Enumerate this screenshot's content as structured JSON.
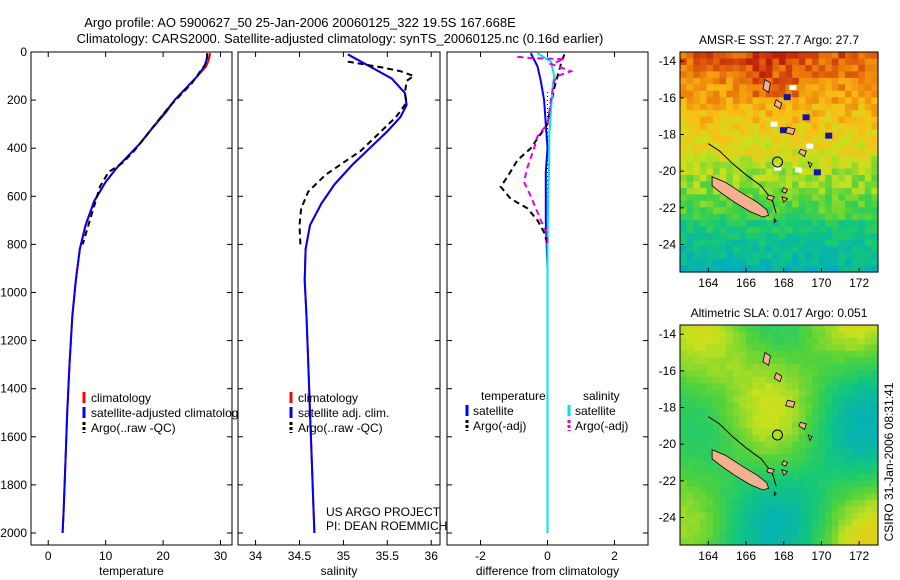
{
  "header": {
    "title_line1": "Argo profile: AO 5900627_50 25-Jan-2006 20060125_322 19.5S 167.668E",
    "title_line2": "Climatology: CARS2000. Satellite-adjusted climatology: synTS_20060125.nc (0.16d earlier)"
  },
  "side_label": "CSIRO 31-Jan-2006 08:31:41",
  "credit": {
    "line1": "US ARGO PROJECT",
    "line2": "PI: DEAN ROEMMICH"
  },
  "colors": {
    "climatology": "#ff0000",
    "satellite": "#0000ff",
    "argo": "#000000",
    "sal_satellite": "#00e5e5",
    "sal_argo": "#e600e6"
  },
  "chart_data": [
    {
      "type": "line",
      "id": "temperature-profile",
      "xlabel": "temperature",
      "xlim": [
        -3,
        32
      ],
      "xticks": [
        "0",
        "10",
        "20",
        "30"
      ],
      "ylim": [
        2050,
        0
      ],
      "yticks": [
        "0",
        "200",
        "400",
        "600",
        "800",
        "1000",
        "1200",
        "1400",
        "1600",
        "1800",
        "2000"
      ],
      "y_reversed": true,
      "legend": [
        {
          "label": "climatology",
          "color": "#ff0000",
          "style": "solid"
        },
        {
          "label": "satellite-adjusted climatology",
          "color": "#0000ff",
          "style": "solid"
        },
        {
          "label": "Argo(..raw -QC)",
          "color": "#000000",
          "style": "dashed"
        }
      ],
      "series": [
        {
          "name": "climatology",
          "color": "#ff0000",
          "style": "solid",
          "points": [
            [
              28.2,
              5
            ],
            [
              28,
              30
            ],
            [
              27.5,
              60
            ],
            [
              26,
              100
            ],
            [
              24,
              150
            ],
            [
              22,
              200
            ],
            [
              20,
              260
            ],
            [
              18,
              320
            ],
            [
              16,
              380
            ],
            [
              14,
              430
            ],
            [
              12,
              480
            ],
            [
              10,
              540
            ],
            [
              8,
              620
            ],
            [
              6.5,
              720
            ],
            [
              5.5,
              820
            ],
            [
              4.8,
              950
            ],
            [
              4.2,
              1100
            ],
            [
              3.7,
              1300
            ],
            [
              3.3,
              1500
            ],
            [
              3,
              1700
            ],
            [
              2.7,
              1900
            ],
            [
              2.5,
              2000
            ]
          ]
        },
        {
          "name": "satellite-adjusted climatology",
          "color": "#0000ff",
          "style": "solid",
          "points": [
            [
              27.7,
              5
            ],
            [
              27.6,
              30
            ],
            [
              27.2,
              60
            ],
            [
              26,
              100
            ],
            [
              24,
              150
            ],
            [
              22,
              200
            ],
            [
              20.5,
              250
            ],
            [
              18,
              320
            ],
            [
              16,
              380
            ],
            [
              14,
              430
            ],
            [
              12,
              480
            ],
            [
              10,
              540
            ],
            [
              8,
              620
            ],
            [
              6.5,
              720
            ],
            [
              5.5,
              820
            ],
            [
              4.8,
              950
            ],
            [
              4.2,
              1100
            ],
            [
              3.7,
              1300
            ],
            [
              3.3,
              1500
            ],
            [
              3,
              1700
            ],
            [
              2.7,
              1900
            ],
            [
              2.5,
              2000
            ]
          ]
        },
        {
          "name": "Argo(..raw -QC)",
          "color": "#000000",
          "style": "dashed",
          "points": [
            [
              27.7,
              5
            ],
            [
              27.7,
              40
            ],
            [
              26.5,
              80
            ],
            [
              25,
              130
            ],
            [
              23,
              180
            ],
            [
              21,
              230
            ],
            [
              19,
              290
            ],
            [
              17,
              350
            ],
            [
              15,
              410
            ],
            [
              13,
              460
            ],
            [
              10.5,
              500
            ],
            [
              9,
              560
            ],
            [
              8,
              640
            ],
            [
              7,
              720
            ],
            [
              6,
              800
            ]
          ]
        }
      ]
    },
    {
      "type": "line",
      "id": "salinity-profile",
      "xlabel": "salinity",
      "xlim": [
        33.8,
        36.1
      ],
      "xticks": [
        "34",
        "34.5",
        "35",
        "35.5",
        "36"
      ],
      "ylim": [
        2050,
        0
      ],
      "y_reversed": true,
      "legend": [
        {
          "label": "climatology",
          "color": "#ff0000",
          "style": "solid"
        },
        {
          "label": "satellite adj. clim.",
          "color": "#0000ff",
          "style": "solid"
        },
        {
          "label": "Argo(..raw -QC)",
          "color": "#000000",
          "style": "dashed"
        }
      ],
      "series": [
        {
          "name": "climatology",
          "color": "#ff0000",
          "style": "solid",
          "points": [
            [
              35.05,
              10
            ],
            [
              35.3,
              60
            ],
            [
              35.55,
              110
            ],
            [
              35.7,
              170
            ],
            [
              35.72,
              220
            ],
            [
              35.65,
              270
            ],
            [
              35.5,
              330
            ],
            [
              35.3,
              400
            ],
            [
              35.1,
              470
            ],
            [
              34.9,
              550
            ],
            [
              34.75,
              630
            ],
            [
              34.62,
              720
            ],
            [
              34.57,
              820
            ],
            [
              34.56,
              950
            ],
            [
              34.58,
              1100
            ],
            [
              34.6,
              1300
            ],
            [
              34.62,
              1500
            ],
            [
              34.64,
              1700
            ],
            [
              34.66,
              1900
            ],
            [
              34.67,
              2000
            ]
          ]
        },
        {
          "name": "satellite adj. clim.",
          "color": "#0000ff",
          "style": "solid",
          "points": [
            [
              35.05,
              10
            ],
            [
              35.3,
              60
            ],
            [
              35.55,
              110
            ],
            [
              35.7,
              170
            ],
            [
              35.72,
              220
            ],
            [
              35.65,
              270
            ],
            [
              35.5,
              330
            ],
            [
              35.3,
              400
            ],
            [
              35.1,
              470
            ],
            [
              34.9,
              550
            ],
            [
              34.75,
              630
            ],
            [
              34.62,
              720
            ],
            [
              34.57,
              820
            ],
            [
              34.56,
              950
            ],
            [
              34.58,
              1100
            ],
            [
              34.6,
              1300
            ],
            [
              34.62,
              1500
            ],
            [
              34.64,
              1700
            ],
            [
              34.66,
              1900
            ],
            [
              34.67,
              2000
            ]
          ]
        },
        {
          "name": "Argo(..raw -QC)",
          "color": "#000000",
          "style": "dashed",
          "points": [
            [
              35.05,
              40
            ],
            [
              35.45,
              65
            ],
            [
              35.65,
              80
            ],
            [
              35.8,
              100
            ],
            [
              35.72,
              120
            ],
            [
              35.7,
              170
            ],
            [
              35.72,
              210
            ],
            [
              35.6,
              270
            ],
            [
              35.4,
              340
            ],
            [
              35.2,
              410
            ],
            [
              35,
              460
            ],
            [
              34.8,
              510
            ],
            [
              34.6,
              580
            ],
            [
              34.52,
              650
            ],
            [
              34.5,
              720
            ],
            [
              34.51,
              800
            ]
          ]
        }
      ]
    },
    {
      "type": "line",
      "id": "difference-profile",
      "xlabel": "difference from climatology",
      "xlim": [
        -3,
        3
      ],
      "xticks": [
        "-2",
        "0",
        "2"
      ],
      "ylim": [
        2050,
        0
      ],
      "y_reversed": true,
      "legend": [
        {
          "label": "temperature",
          "heading": true
        },
        {
          "label": "satellite",
          "color": "#0000ff",
          "style": "solid"
        },
        {
          "label": "Argo(-adj)",
          "color": "#000000",
          "style": "dashed"
        },
        {
          "label": "salinity",
          "heading": true
        },
        {
          "label": "satellite",
          "color": "#00e5e5",
          "style": "solid"
        },
        {
          "label": "Argo(-adj)",
          "color": "#e600e6",
          "style": "dashed"
        }
      ],
      "series": [
        {
          "name": "temperature satellite",
          "color": "#0000ff",
          "style": "solid",
          "points": [
            [
              -0.5,
              5
            ],
            [
              -0.3,
              60
            ],
            [
              -0.2,
              120
            ],
            [
              -0.1,
              200
            ],
            [
              -0.05,
              300
            ],
            [
              0,
              400
            ],
            [
              -0.05,
              500
            ],
            [
              -0.05,
              700
            ],
            [
              0,
              900
            ],
            [
              0,
              1200
            ],
            [
              0,
              1600
            ],
            [
              0,
              2000
            ]
          ]
        },
        {
          "name": "temperature Argo(-adj)",
          "color": "#000000",
          "style": "dashed",
          "points": [
            [
              0.5,
              10
            ],
            [
              0.4,
              50
            ],
            [
              0.2,
              150
            ],
            [
              0,
              300
            ],
            [
              -0.5,
              400
            ],
            [
              -0.9,
              450
            ],
            [
              -1.2,
              520
            ],
            [
              -1.4,
              560
            ],
            [
              -1.1,
              610
            ],
            [
              -0.6,
              650
            ],
            [
              -0.3,
              700
            ],
            [
              -0.1,
              750
            ],
            [
              0,
              800
            ]
          ]
        },
        {
          "name": "salinity satellite",
          "color": "#00e5e5",
          "style": "solid",
          "points": [
            [
              -0.3,
              5
            ],
            [
              0.1,
              40
            ],
            [
              0.2,
              100
            ],
            [
              0.15,
              150
            ],
            [
              0.1,
              250
            ],
            [
              0.05,
              350
            ],
            [
              0.05,
              450
            ],
            [
              0.02,
              600
            ],
            [
              0,
              800
            ],
            [
              0,
              1200
            ],
            [
              0,
              1600
            ],
            [
              0,
              2000
            ]
          ]
        },
        {
          "name": "salinity Argo(-adj)",
          "color": "#e600e6",
          "style": "dashed",
          "points": [
            [
              -0.9,
              20
            ],
            [
              -0.5,
              25
            ],
            [
              0.5,
              30
            ],
            [
              0.1,
              50
            ],
            [
              0.7,
              80
            ],
            [
              0.3,
              100
            ],
            [
              0.2,
              120
            ],
            [
              0.1,
              200
            ],
            [
              0,
              300
            ],
            [
              -0.3,
              350
            ],
            [
              -0.4,
              400
            ],
            [
              -0.6,
              480
            ],
            [
              -0.7,
              540
            ],
            [
              -0.5,
              600
            ],
            [
              -0.2,
              700
            ],
            [
              0,
              760
            ],
            [
              0,
              800
            ]
          ]
        }
      ]
    },
    {
      "type": "heatmap",
      "id": "sst-map",
      "title": "AMSR-E SST: 27.7 Argo: 27.7",
      "xlim": [
        162.5,
        173
      ],
      "ylim": [
        -25.5,
        -13.5
      ],
      "xticks": [
        "164",
        "166",
        "168",
        "170",
        "172"
      ],
      "yticks": [
        "-14",
        "-16",
        "-18",
        "-20",
        "-22",
        "-24"
      ],
      "marker": {
        "lon": 167.668,
        "lat": -19.5
      }
    },
    {
      "type": "heatmap",
      "id": "sla-map",
      "title": "Altimetric SLA: 0.017 Argo: 0.051",
      "xlim": [
        162.5,
        173
      ],
      "ylim": [
        -25.5,
        -13.5
      ],
      "xticks": [
        "164",
        "166",
        "168",
        "170",
        "172"
      ],
      "yticks": [
        "-14",
        "-16",
        "-18",
        "-20",
        "-22",
        "-24"
      ],
      "marker": {
        "lon": 167.668,
        "lat": -19.5
      }
    }
  ]
}
